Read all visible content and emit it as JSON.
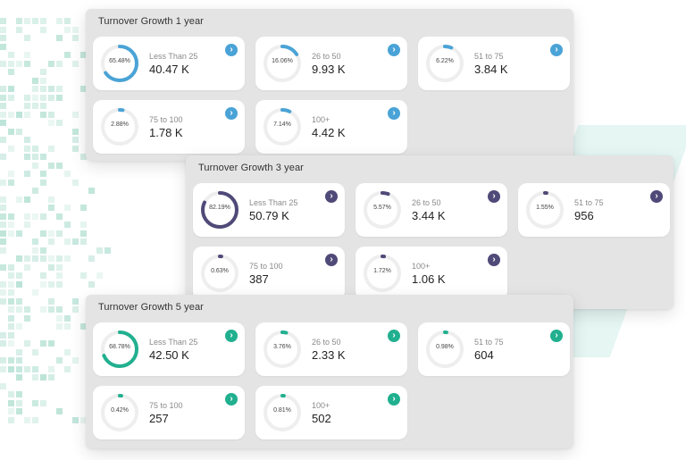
{
  "colors": {
    "y1": "#4aa3d6",
    "y3": "#4f4a78",
    "y5": "#21b08f",
    "track": "#eeeeee"
  },
  "icons": {
    "card_action": "chevron-right-icon"
  },
  "panels": [
    {
      "id": "y1",
      "title": "Turnover Growth 1 year",
      "cards": [
        {
          "pct": "65.48%",
          "pct_value": 65.48,
          "label": "Less Than 25",
          "value": "40.47 K"
        },
        {
          "pct": "16.06%",
          "pct_value": 16.06,
          "label": "26 to 50",
          "value": "9.93 K"
        },
        {
          "pct": "6.22%",
          "pct_value": 6.22,
          "label": "51 to 75",
          "value": "3.84 K"
        },
        {
          "pct": "2.88%",
          "pct_value": 2.88,
          "label": "75 to 100",
          "value": "1.78 K"
        },
        {
          "pct": "7.14%",
          "pct_value": 7.14,
          "label": "100+",
          "value": "4.42 K"
        }
      ]
    },
    {
      "id": "y3",
      "title": "Turnover Growth 3 year",
      "cards": [
        {
          "pct": "82.19%",
          "pct_value": 82.19,
          "label": "Less Than 25",
          "value": "50.79 K"
        },
        {
          "pct": "5.57%",
          "pct_value": 5.57,
          "label": "26 to 50",
          "value": "3.44 K"
        },
        {
          "pct": "1.55%",
          "pct_value": 1.55,
          "label": "51 to 75",
          "value": "956"
        },
        {
          "pct": "0.63%",
          "pct_value": 0.63,
          "label": "75 to 100",
          "value": "387"
        },
        {
          "pct": "1.72%",
          "pct_value": 1.72,
          "label": "100+",
          "value": "1.06 K"
        }
      ]
    },
    {
      "id": "y5",
      "title": "Turnover Growth 5 year",
      "cards": [
        {
          "pct": "68.78%",
          "pct_value": 68.78,
          "label": "Less Than 25",
          "value": "42.50 K"
        },
        {
          "pct": "3.76%",
          "pct_value": 3.76,
          "label": "26 to 50",
          "value": "2.33 K"
        },
        {
          "pct": "0.98%",
          "pct_value": 0.98,
          "label": "51 to 75",
          "value": "604"
        },
        {
          "pct": "0.42%",
          "pct_value": 0.42,
          "label": "75 to 100",
          "value": "257"
        },
        {
          "pct": "0.81%",
          "pct_value": 0.81,
          "label": "100+",
          "value": "502"
        }
      ]
    }
  ]
}
